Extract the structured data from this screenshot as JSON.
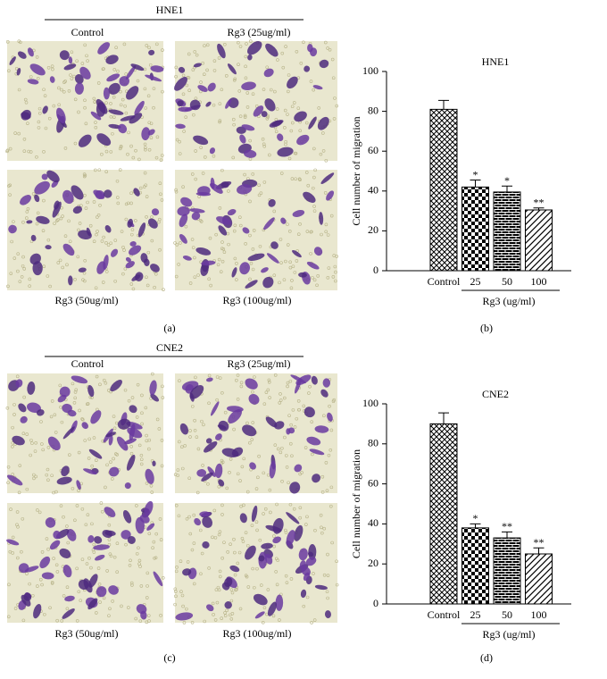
{
  "figure_top": {
    "title": "HNE1",
    "images": [
      "Control",
      "Rg3 (25ug/ml)",
      "Rg3 (50ug/ml)",
      "Rg3 (100ug/ml)"
    ],
    "panel_label": "(a)"
  },
  "figure_bottom": {
    "title": "CNE2",
    "images": [
      "Control",
      "Rg3 (25ug/ml)",
      "Rg3 (50ug/ml)",
      "Rg3 (100ug/ml)"
    ],
    "panel_label": "(c)"
  },
  "chart_data": [
    {
      "type": "bar",
      "title": "HNE1",
      "ylabel": "Cell number of migration",
      "group_label": "Rg3 (ug/ml)",
      "panel_label": "(b)",
      "categories": [
        "Control",
        "25",
        "50",
        "100"
      ],
      "values": [
        81,
        42,
        39.5,
        30.5
      ],
      "errors": [
        4.5,
        3.5,
        3,
        1
      ],
      "annotations": [
        null,
        "*",
        "*",
        "**"
      ],
      "ylim": [
        0,
        100
      ],
      "yticks": [
        0,
        20,
        40,
        60,
        80,
        100
      ],
      "color": "#000000"
    },
    {
      "type": "bar",
      "title": "CNE2",
      "ylabel": "Cell number of migration",
      "group_label": "Rg3 (ug/ml)",
      "panel_label": "(d)",
      "categories": [
        "Control",
        "25",
        "50",
        "100"
      ],
      "values": [
        90,
        38,
        33,
        25
      ],
      "errors": [
        5.5,
        2,
        3,
        3
      ],
      "annotations": [
        null,
        "*",
        "**",
        "**"
      ],
      "ylim": [
        0,
        100
      ],
      "yticks": [
        0,
        20,
        40,
        60,
        80,
        100
      ],
      "color": "#000000"
    }
  ]
}
